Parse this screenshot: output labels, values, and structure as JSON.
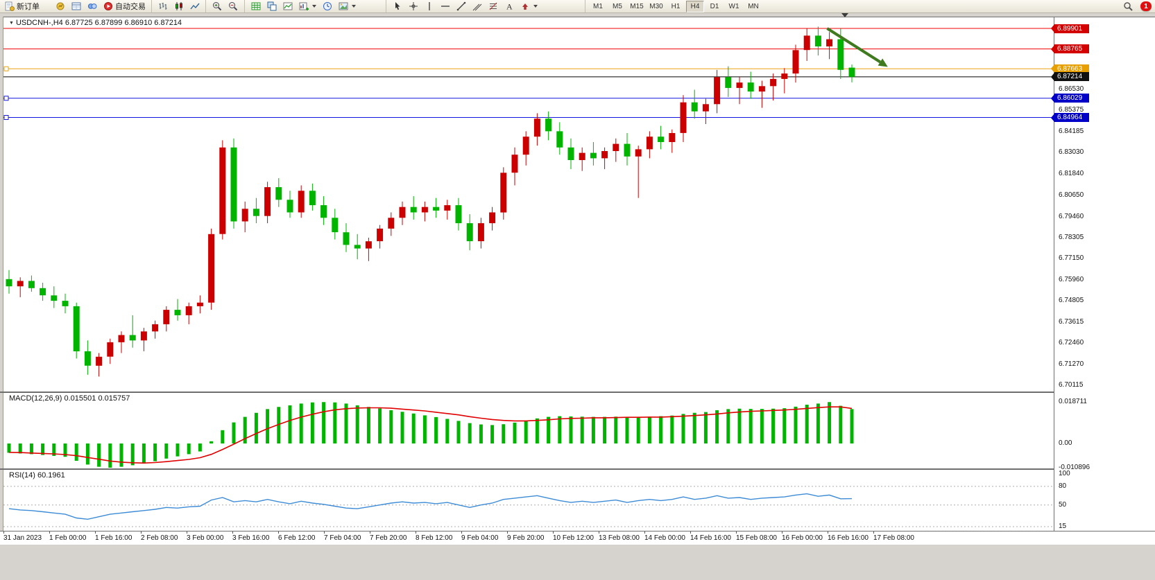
{
  "toolbar": {
    "new_order_label": "新订单",
    "autotrade_label": "自动交易",
    "timeframes": [
      "M1",
      "M5",
      "M15",
      "M30",
      "H1",
      "H4",
      "D1",
      "W1",
      "MN"
    ],
    "active_timeframe": "H4",
    "notification_count": "1",
    "icons": [
      "new-order-icon",
      "market-watch-icon",
      "data-window-icon",
      "navigator-icon",
      "autotrading-icon",
      "bar-chart-icon",
      "candlestick-chart-icon",
      "line-chart-icon",
      "zoom-in-icon",
      "zoom-out-icon",
      "grid-icon",
      "tile-windows-icon",
      "indicators-icon",
      "new-chart-icon",
      "clock-icon",
      "templates-icon",
      "cursor-icon",
      "crosshair-icon",
      "vertical-line-icon",
      "horizontal-line-icon",
      "trendline-icon",
      "channel-icon",
      "fibonacci-icon",
      "text-icon",
      "arrows-icon",
      "search-icon"
    ]
  },
  "chart_data": [
    {
      "type": "candlestick",
      "symbol": "USDCNH-",
      "timeframe": "H4",
      "title": "USDCNH-,H4  6.87725 6.87899 6.86910 6.87214",
      "bull_color": "#CC0000",
      "bear_color": "#00B400",
      "ylim": [
        6.696,
        6.9045
      ],
      "grid": false,
      "y_ticks": [
        "6.86530",
        "6.85375",
        "6.84185",
        "6.83030",
        "6.81840",
        "6.80650",
        "6.79460",
        "6.78305",
        "6.77150",
        "6.75960",
        "6.74805",
        "6.73615",
        "6.72460",
        "6.71270",
        "6.70115"
      ],
      "h_lines": [
        {
          "price": 6.89901,
          "label": "6.89901",
          "color": "#F00000",
          "tag_bg": "#D40000",
          "handle": false
        },
        {
          "price": 6.88765,
          "label": "6.88765",
          "color": "#F00000",
          "tag_bg": "#D40000",
          "handle": false
        },
        {
          "price": 6.87663,
          "label": "6.87663",
          "color": "#EBA112",
          "tag_bg": "#E8A000",
          "handle": true
        },
        {
          "price": 6.87214,
          "label": "6.87214",
          "color": "#000000",
          "tag_bg": "#111111",
          "handle": false,
          "current_price": true
        },
        {
          "price": 6.86029,
          "label": "6.86029",
          "color": "#1414E0",
          "tag_bg": "#0000C8",
          "handle": true
        },
        {
          "price": 6.84964,
          "label": "6.84964",
          "color": "#1414E0",
          "tag_bg": "#0000C8",
          "handle": true
        }
      ],
      "x_labels": [
        "31 Jan 2023",
        "1 Feb 00:00",
        "1 Feb 16:00",
        "2 Feb 08:00",
        "3 Feb 00:00",
        "3 Feb 16:00",
        "6 Feb 12:00",
        "7 Feb 04:00",
        "7 Feb 20:00",
        "8 Feb 12:00",
        "9 Feb 04:00",
        "9 Feb 20:00",
        "10 Feb 12:00",
        "13 Feb 08:00",
        "14 Feb 00:00",
        "14 Feb 16:00",
        "15 Feb 08:00",
        "16 Feb 00:00",
        "16 Feb 16:00",
        "17 Feb 08:00"
      ],
      "candles": [
        [
          6.76,
          6.765,
          6.752,
          6.756
        ],
        [
          6.756,
          6.761,
          6.75,
          6.759
        ],
        [
          6.759,
          6.762,
          6.753,
          6.755
        ],
        [
          6.755,
          6.758,
          6.748,
          6.751
        ],
        [
          6.751,
          6.756,
          6.744,
          6.748
        ],
        [
          6.748,
          6.752,
          6.741,
          6.745
        ],
        [
          6.745,
          6.747,
          6.716,
          6.72
        ],
        [
          6.72,
          6.726,
          6.707,
          6.712
        ],
        [
          6.712,
          6.719,
          6.706,
          6.717
        ],
        [
          6.717,
          6.727,
          6.713,
          6.725
        ],
        [
          6.725,
          6.731,
          6.719,
          6.729
        ],
        [
          6.729,
          6.74,
          6.722,
          6.726
        ],
        [
          6.726,
          6.733,
          6.72,
          6.731
        ],
        [
          6.731,
          6.737,
          6.727,
          6.735
        ],
        [
          6.735,
          6.745,
          6.731,
          6.743
        ],
        [
          6.743,
          6.749,
          6.737,
          6.74
        ],
        [
          6.74,
          6.747,
          6.735,
          6.745
        ],
        [
          6.745,
          6.751,
          6.741,
          6.747
        ],
        [
          6.747,
          6.788,
          6.743,
          6.785
        ],
        [
          6.785,
          6.837,
          6.782,
          6.833
        ],
        [
          6.833,
          6.838,
          6.788,
          6.792
        ],
        [
          6.792,
          6.803,
          6.786,
          6.799
        ],
        [
          6.799,
          6.805,
          6.791,
          6.795
        ],
        [
          6.795,
          6.814,
          6.791,
          6.811
        ],
        [
          6.811,
          6.816,
          6.8,
          6.804
        ],
        [
          6.804,
          6.809,
          6.794,
          6.797
        ],
        [
          6.797,
          6.812,
          6.794,
          6.809
        ],
        [
          6.809,
          6.813,
          6.798,
          6.801
        ],
        [
          6.801,
          6.806,
          6.79,
          6.794
        ],
        [
          6.794,
          6.799,
          6.782,
          6.786
        ],
        [
          6.786,
          6.791,
          6.775,
          6.779
        ],
        [
          6.779,
          6.785,
          6.771,
          6.777
        ],
        [
          6.777,
          6.783,
          6.77,
          6.781
        ],
        [
          6.781,
          6.79,
          6.777,
          6.788
        ],
        [
          6.788,
          6.797,
          6.784,
          6.794
        ],
        [
          6.794,
          6.803,
          6.79,
          6.8
        ],
        [
          6.8,
          6.806,
          6.793,
          6.797
        ],
        [
          6.797,
          6.803,
          6.792,
          6.8
        ],
        [
          6.8,
          6.805,
          6.794,
          6.798
        ],
        [
          6.798,
          6.804,
          6.793,
          6.801
        ],
        [
          6.801,
          6.805,
          6.787,
          6.791
        ],
        [
          6.791,
          6.796,
          6.776,
          6.781
        ],
        [
          6.781,
          6.794,
          6.777,
          6.791
        ],
        [
          6.791,
          6.8,
          6.787,
          6.797
        ],
        [
          6.797,
          6.822,
          6.793,
          6.819
        ],
        [
          6.819,
          6.833,
          6.812,
          6.829
        ],
        [
          6.829,
          6.842,
          6.823,
          6.839
        ],
        [
          6.839,
          6.852,
          6.834,
          6.849
        ],
        [
          6.849,
          6.853,
          6.837,
          6.842
        ],
        [
          6.842,
          6.847,
          6.829,
          6.833
        ],
        [
          6.833,
          6.838,
          6.821,
          6.826
        ],
        [
          6.826,
          6.833,
          6.82,
          6.83
        ],
        [
          6.83,
          6.836,
          6.823,
          6.827
        ],
        [
          6.827,
          6.833,
          6.821,
          6.831
        ],
        [
          6.831,
          6.838,
          6.825,
          6.835
        ],
        [
          6.835,
          6.841,
          6.823,
          6.828
        ],
        [
          6.828,
          6.834,
          6.805,
          6.832
        ],
        [
          6.832,
          6.842,
          6.827,
          6.839
        ],
        [
          6.839,
          6.845,
          6.832,
          6.836
        ],
        [
          6.836,
          6.843,
          6.83,
          6.841
        ],
        [
          6.841,
          6.862,
          6.836,
          6.858
        ],
        [
          6.858,
          6.865,
          6.849,
          6.853
        ],
        [
          6.853,
          6.86,
          6.846,
          6.857
        ],
        [
          6.857,
          6.876,
          6.852,
          6.872
        ],
        [
          6.872,
          6.878,
          6.861,
          6.866
        ],
        [
          6.866,
          6.872,
          6.857,
          6.869
        ],
        [
          6.869,
          6.875,
          6.86,
          6.864
        ],
        [
          6.864,
          6.87,
          6.855,
          6.867
        ],
        [
          6.867,
          6.874,
          6.859,
          6.871
        ],
        [
          6.871,
          6.877,
          6.863,
          6.874
        ],
        [
          6.874,
          6.89,
          6.869,
          6.887
        ],
        [
          6.887,
          6.899,
          6.881,
          6.895
        ],
        [
          6.895,
          6.9,
          6.884,
          6.889
        ],
        [
          6.889,
          6.897,
          6.882,
          6.893
        ],
        [
          6.893,
          6.899,
          6.871,
          6.876
        ],
        [
          6.87725,
          6.87899,
          6.8691,
          6.87214
        ]
      ],
      "annotation_arrow": {
        "from_bar": 72.8,
        "from_price": 6.899,
        "to_bar": 78.2,
        "to_price": 6.8777,
        "color": "#3F7A1F"
      }
    },
    {
      "type": "macd-histogram",
      "title": "MACD(12,26,9)",
      "value_main": "0.015501",
      "value_signal": "0.015757",
      "hist_color": "#00B400",
      "signal_color": "#E00000",
      "y_ticks": [
        {
          "label": "0.018711",
          "value": 0.018711
        },
        {
          "label": "0.00",
          "value": 0
        },
        {
          "label": "-0.010896",
          "value": -0.010896
        }
      ],
      "histogram": [
        -0.0042,
        -0.0045,
        -0.0048,
        -0.0052,
        -0.0056,
        -0.006,
        -0.0078,
        -0.0095,
        -0.0105,
        -0.0109,
        -0.0105,
        -0.0098,
        -0.009,
        -0.008,
        -0.0068,
        -0.0058,
        -0.0048,
        -0.0036,
        0.001,
        0.006,
        0.0095,
        0.012,
        0.0138,
        0.0155,
        0.0165,
        0.0172,
        0.018,
        0.0185,
        0.0187,
        0.0185,
        0.018,
        0.0172,
        0.0165,
        0.0158,
        0.015,
        0.0143,
        0.0135,
        0.0127,
        0.0119,
        0.0111,
        0.0102,
        0.0092,
        0.0086,
        0.0083,
        0.0087,
        0.0094,
        0.0103,
        0.0113,
        0.012,
        0.0123,
        0.0122,
        0.0121,
        0.012,
        0.012,
        0.0121,
        0.012,
        0.0119,
        0.0121,
        0.0123,
        0.0126,
        0.0133,
        0.0138,
        0.0142,
        0.015,
        0.0155,
        0.0157,
        0.0156,
        0.0156,
        0.0157,
        0.0159,
        0.0166,
        0.0175,
        0.018,
        0.0187,
        0.017,
        0.0155
      ],
      "signal": [
        -0.004,
        -0.0041,
        -0.0043,
        -0.0045,
        -0.0047,
        -0.005,
        -0.0055,
        -0.0063,
        -0.0071,
        -0.0079,
        -0.0084,
        -0.0087,
        -0.0088,
        -0.0086,
        -0.0082,
        -0.0077,
        -0.0072,
        -0.0064,
        -0.0049,
        -0.0027,
        -0.0003,
        0.0022,
        0.0045,
        0.0067,
        0.0086,
        0.0104,
        0.0119,
        0.0132,
        0.0143,
        0.0152,
        0.0157,
        0.016,
        0.0161,
        0.0161,
        0.0159,
        0.0155,
        0.0151,
        0.0147,
        0.0141,
        0.0135,
        0.0129,
        0.0121,
        0.0114,
        0.0108,
        0.0104,
        0.0102,
        0.0102,
        0.0104,
        0.0107,
        0.0111,
        0.0113,
        0.0114,
        0.0116,
        0.0116,
        0.0117,
        0.0118,
        0.0118,
        0.0119,
        0.0119,
        0.0121,
        0.0123,
        0.0126,
        0.0129,
        0.0133,
        0.0138,
        0.0142,
        0.0145,
        0.0147,
        0.0149,
        0.0151,
        0.0154,
        0.0158,
        0.0162,
        0.0165,
        0.0165,
        0.0158
      ]
    },
    {
      "type": "line",
      "title": "RSI(14)",
      "value": "60.1961",
      "color": "#3C8BD6",
      "levels": [
        80,
        50,
        15
      ],
      "y_ticks": [
        "100",
        "80",
        "50",
        "15"
      ],
      "ylim": [
        15,
        100
      ],
      "values": [
        44,
        42,
        41,
        39,
        37,
        35,
        29,
        27,
        31,
        35,
        37,
        39,
        41,
        43,
        46,
        45,
        47,
        48,
        58,
        62,
        55,
        57,
        55,
        59,
        55,
        52,
        56,
        53,
        51,
        48,
        45,
        44,
        47,
        50,
        53,
        55,
        53,
        54,
        52,
        54,
        50,
        46,
        50,
        53,
        59,
        61,
        63,
        65,
        61,
        57,
        54,
        56,
        54,
        56,
        58,
        54,
        57,
        59,
        57,
        59,
        63,
        59,
        61,
        65,
        61,
        62,
        59,
        61,
        62,
        63,
        66,
        68,
        64,
        66,
        60,
        60.2
      ]
    }
  ]
}
